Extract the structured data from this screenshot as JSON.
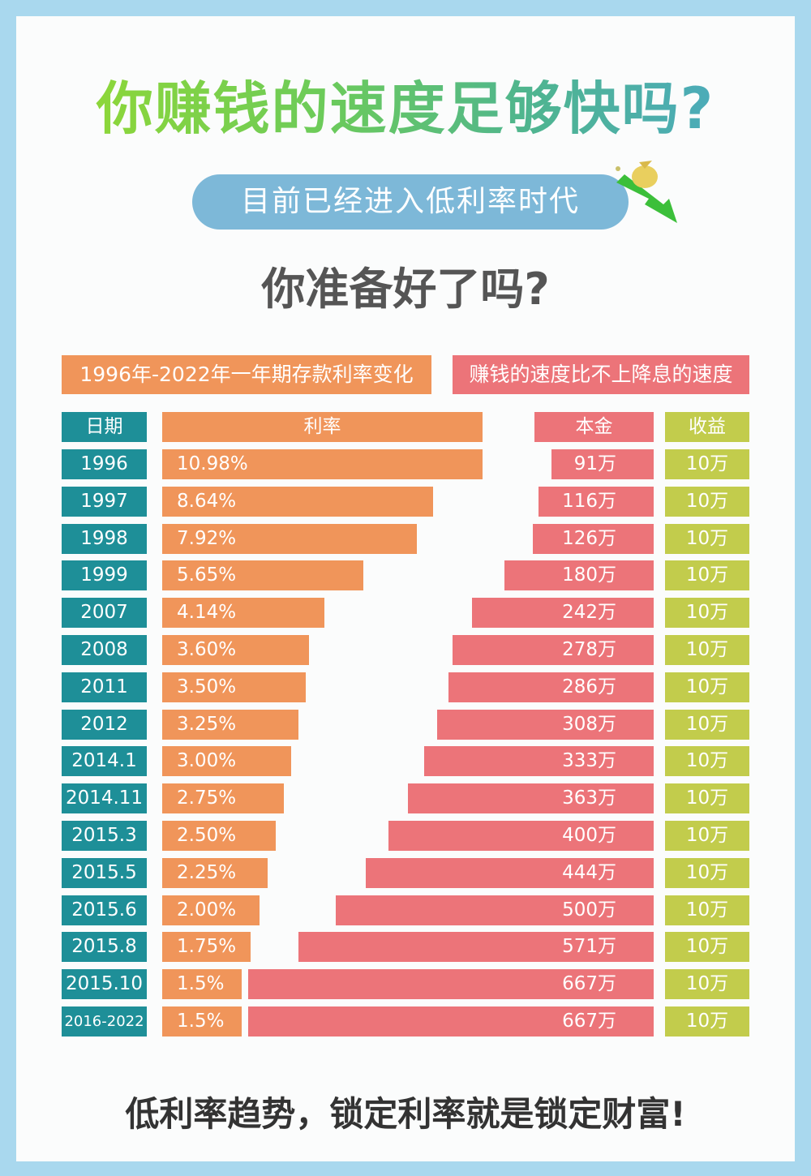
{
  "header": {
    "title": "你赚钱的速度足够快吗?",
    "pill": "目前已经进入低利率时代",
    "subtitle": "你准备好了吗?"
  },
  "banners": {
    "left": "1996年-2022年一年期存款利率变化",
    "right": "赚钱的速度比不上降息的速度"
  },
  "footer": "低利率趋势，锁定利率就是锁定财富!",
  "colors": {
    "date": "#1e8f98",
    "rate": "#f0955a",
    "principal": "#ec7479",
    "income": "#c2cc4c"
  },
  "chart_data": {
    "type": "table",
    "title": "1996年-2022年一年期存款利率变化",
    "columns": [
      "日期",
      "利率",
      "本金",
      "收益"
    ],
    "rows": [
      {
        "date": "1996",
        "rate": 10.98,
        "rate_label": "10.98%",
        "principal": 91,
        "principal_label": "91万",
        "income_label": "10万"
      },
      {
        "date": "1997",
        "rate": 8.64,
        "rate_label": "8.64%",
        "principal": 116,
        "principal_label": "116万",
        "income_label": "10万"
      },
      {
        "date": "1998",
        "rate": 7.92,
        "rate_label": "7.92%",
        "principal": 126,
        "principal_label": "126万",
        "income_label": "10万"
      },
      {
        "date": "1999",
        "rate": 5.65,
        "rate_label": "5.65%",
        "principal": 180,
        "principal_label": "180万",
        "income_label": "10万"
      },
      {
        "date": "2007",
        "rate": 4.14,
        "rate_label": "4.14%",
        "principal": 242,
        "principal_label": "242万",
        "income_label": "10万"
      },
      {
        "date": "2008",
        "rate": 3.6,
        "rate_label": "3.60%",
        "principal": 278,
        "principal_label": "278万",
        "income_label": "10万"
      },
      {
        "date": "2011",
        "rate": 3.5,
        "rate_label": "3.50%",
        "principal": 286,
        "principal_label": "286万",
        "income_label": "10万"
      },
      {
        "date": "2012",
        "rate": 3.25,
        "rate_label": "3.25%",
        "principal": 308,
        "principal_label": "308万",
        "income_label": "10万"
      },
      {
        "date": "2014.1",
        "rate": 3.0,
        "rate_label": "3.00%",
        "principal": 333,
        "principal_label": "333万",
        "income_label": "10万"
      },
      {
        "date": "2014.11",
        "rate": 2.75,
        "rate_label": "2.75%",
        "principal": 363,
        "principal_label": "363万",
        "income_label": "10万"
      },
      {
        "date": "2015.3",
        "rate": 2.5,
        "rate_label": "2.50%",
        "principal": 400,
        "principal_label": "400万",
        "income_label": "10万"
      },
      {
        "date": "2015.5",
        "rate": 2.25,
        "rate_label": "2.25%",
        "principal": 444,
        "principal_label": "444万",
        "income_label": "10万"
      },
      {
        "date": "2015.6",
        "rate": 2.0,
        "rate_label": "2.00%",
        "principal": 500,
        "principal_label": "500万",
        "income_label": "10万"
      },
      {
        "date": "2015.8",
        "rate": 1.75,
        "rate_label": "1.75%",
        "principal": 571,
        "principal_label": "571万",
        "income_label": "10万"
      },
      {
        "date": "2015.10",
        "rate": 1.5,
        "rate_label": "1.5%",
        "principal": 667,
        "principal_label": "667万",
        "income_label": "10万"
      },
      {
        "date": "2016-2022",
        "rate": 1.5,
        "rate_label": "1.5%",
        "principal": 667,
        "principal_label": "667万",
        "income_label": "10万"
      }
    ]
  }
}
